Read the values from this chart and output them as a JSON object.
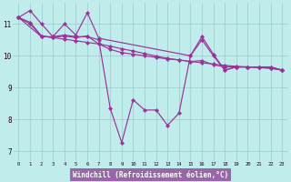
{
  "xlabel": "Windchill (Refroidissement éolien,°C)",
  "bg_color": "#c0ecec",
  "line_color": "#993399",
  "xlabel_bg": "#9966aa",
  "xlim": [
    -0.5,
    23.5
  ],
  "ylim": [
    6.7,
    11.65
  ],
  "xticks": [
    0,
    1,
    2,
    3,
    4,
    5,
    6,
    7,
    8,
    9,
    10,
    11,
    12,
    13,
    14,
    15,
    16,
    17,
    18,
    19,
    20,
    21,
    22,
    23
  ],
  "yticks": [
    7,
    8,
    9,
    10,
    11
  ],
  "s1_x": [
    0,
    1,
    2,
    3,
    4,
    5,
    6,
    7,
    8,
    9,
    10,
    11,
    12,
    13,
    14,
    15,
    16,
    17,
    18,
    19,
    20,
    21,
    22,
    23
  ],
  "s1_y": [
    11.2,
    11.42,
    11.0,
    10.6,
    10.65,
    10.6,
    10.6,
    10.5,
    8.35,
    7.28,
    8.62,
    8.3,
    8.3,
    7.82,
    8.2,
    10.0,
    10.5,
    10.0,
    9.55,
    9.65,
    9.65,
    9.65,
    9.65,
    9.55
  ],
  "s2_x": [
    0,
    2,
    3,
    4,
    5,
    6,
    7,
    15,
    16,
    17,
    18,
    19,
    20,
    21,
    22,
    23
  ],
  "s2_y": [
    11.2,
    10.6,
    10.6,
    11.0,
    10.65,
    11.35,
    10.55,
    10.0,
    10.6,
    10.05,
    9.55,
    9.65,
    9.65,
    9.65,
    9.65,
    9.55
  ],
  "s3_x": [
    0,
    1,
    2,
    3,
    4,
    5,
    6,
    7,
    8,
    9,
    10,
    11,
    12,
    13,
    14,
    15,
    16,
    17,
    18,
    19,
    20,
    21,
    22,
    23
  ],
  "s3_y": [
    11.2,
    11.05,
    10.62,
    10.57,
    10.52,
    10.47,
    10.42,
    10.37,
    10.3,
    10.22,
    10.15,
    10.07,
    9.99,
    9.92,
    9.87,
    9.82,
    9.78,
    9.74,
    9.7,
    9.67,
    9.65,
    9.63,
    9.61,
    9.55
  ],
  "s4_x": [
    0,
    1,
    2,
    3,
    4,
    5,
    6,
    7,
    8,
    9,
    10,
    11,
    12,
    13,
    14,
    15,
    16,
    17,
    18,
    19,
    20,
    21,
    22,
    23
  ],
  "s4_y": [
    11.2,
    11.0,
    10.62,
    10.57,
    10.62,
    10.57,
    10.62,
    10.37,
    10.2,
    10.1,
    10.05,
    10.0,
    9.95,
    9.9,
    9.87,
    9.82,
    9.85,
    9.72,
    9.65,
    9.65,
    9.65,
    9.63,
    9.61,
    9.55
  ]
}
